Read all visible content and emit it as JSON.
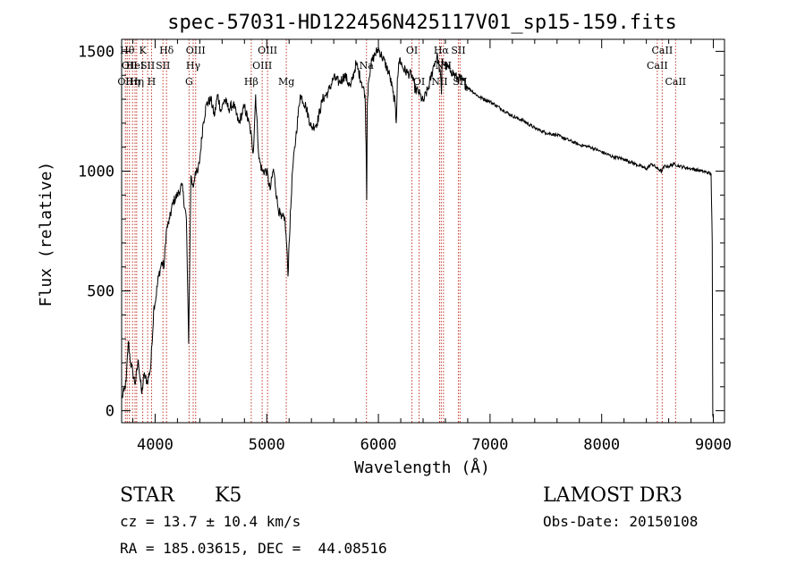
{
  "chart_data": {
    "type": "line",
    "title": "spec-57031-HD122456N425117V01_sp15-159.fits",
    "xlabel": "Wavelength (Å)",
    "ylabel": "Flux (relative)",
    "xlim": [
      3700,
      9100
    ],
    "ylim": [
      -50,
      1550
    ],
    "xticks": [
      4000,
      5000,
      6000,
      7000,
      8000,
      9000
    ],
    "yticks": [
      0,
      500,
      1000,
      1500
    ],
    "series": [
      {
        "name": "flux",
        "x": [
          3700,
          3720,
          3740,
          3760,
          3780,
          3800,
          3820,
          3850,
          3880,
          3900,
          3930,
          3960,
          3990,
          4000,
          4030,
          4060,
          4080,
          4100,
          4130,
          4160,
          4200,
          4240,
          4280,
          4300,
          4320,
          4340,
          4360,
          4380,
          4400,
          4430,
          4460,
          4500,
          4530,
          4560,
          4590,
          4620,
          4660,
          4700,
          4750,
          4800,
          4850,
          4880,
          4900,
          4930,
          4960,
          5000,
          5030,
          5060,
          5100,
          5130,
          5160,
          5180,
          5190,
          5200,
          5230,
          5260,
          5300,
          5350,
          5400,
          5450,
          5500,
          5550,
          5600,
          5650,
          5700,
          5750,
          5800,
          5850,
          5880,
          5890,
          5895,
          5900,
          5910,
          5930,
          5960,
          6000,
          6030,
          6060,
          6100,
          6130,
          6150,
          6160,
          6170,
          6190,
          6220,
          6260,
          6300,
          6330,
          6360,
          6400,
          6450,
          6500,
          6530,
          6560,
          6565,
          6570,
          6600,
          6650,
          6700,
          6750,
          6800,
          6900,
          7000,
          7100,
          7200,
          7300,
          7400,
          7500,
          7600,
          7700,
          7800,
          7900,
          8000,
          8100,
          8200,
          8300,
          8400,
          8450,
          8500,
          8540,
          8560,
          8600,
          8650,
          8700,
          8800,
          8900,
          8980,
          8990,
          8995,
          9000
        ],
        "y": [
          50,
          80,
          120,
          290,
          200,
          160,
          110,
          210,
          70,
          150,
          120,
          180,
          440,
          450,
          560,
          620,
          600,
          750,
          800,
          870,
          900,
          940,
          800,
          280,
          980,
          930,
          1000,
          990,
          1050,
          1200,
          1280,
          1300,
          1230,
          1320,
          1250,
          1300,
          1260,
          1280,
          1200,
          1270,
          1180,
          1080,
          1320,
          1050,
          1000,
          1000,
          920,
          1010,
          850,
          800,
          810,
          680,
          560,
          700,
          1000,
          1140,
          1320,
          1270,
          1180,
          1200,
          1300,
          1330,
          1390,
          1370,
          1400,
          1350,
          1450,
          1370,
          1320,
          1110,
          880,
          1270,
          1370,
          1440,
          1480,
          1510,
          1480,
          1450,
          1400,
          1330,
          1280,
          1200,
          1390,
          1470,
          1430,
          1410,
          1400,
          1340,
          1330,
          1290,
          1350,
          1450,
          1480,
          1380,
          1320,
          1460,
          1440,
          1420,
          1390,
          1380,
          1350,
          1310,
          1290,
          1260,
          1230,
          1210,
          1180,
          1160,
          1150,
          1130,
          1110,
          1100,
          1080,
          1060,
          1050,
          1030,
          1010,
          1030,
          1010,
          1000,
          1020,
          1020,
          1030,
          1020,
          1010,
          1000,
          990,
          700,
          -20,
          -30
        ]
      }
    ],
    "lines": [
      {
        "x": 3734,
        "label": "OII",
        "row": 3
      },
      {
        "x": 3750,
        "label": "Hθ",
        "row": 1
      },
      {
        "x": 3770,
        "label": "OII",
        "row": 2
      },
      {
        "x": 3798,
        "label": "Hη",
        "row": 3
      },
      {
        "x": 3820,
        "label": "HeI",
        "row": 2
      },
      {
        "x": 3835,
        "label": "Hη",
        "row": 3
      },
      {
        "x": 3889,
        "label": "K",
        "row": 1
      },
      {
        "x": 3933,
        "label": "SII",
        "row": 2
      },
      {
        "x": 3968,
        "label": "H",
        "row": 3
      },
      {
        "x": 4070,
        "label": "SII",
        "row": 2
      },
      {
        "x": 4102,
        "label": "Hδ",
        "row": 1
      },
      {
        "x": 4304,
        "label": "G",
        "row": 3
      },
      {
        "x": 4341,
        "label": "Hγ",
        "row": 2
      },
      {
        "x": 4363,
        "label": "OIII",
        "row": 1
      },
      {
        "x": 4861,
        "label": "Hβ",
        "row": 3
      },
      {
        "x": 4959,
        "label": "OIII",
        "row": 2
      },
      {
        "x": 5007,
        "label": "OIII",
        "row": 1
      },
      {
        "x": 5175,
        "label": "Mg",
        "row": 3
      },
      {
        "x": 5893,
        "label": "Na",
        "row": 2
      },
      {
        "x": 6300,
        "label": "OI",
        "row": 1
      },
      {
        "x": 6364,
        "label": "OI",
        "row": 3
      },
      {
        "x": 6548,
        "label": "NII",
        "row": 3
      },
      {
        "x": 6563,
        "label": "Hα",
        "row": 1
      },
      {
        "x": 6583,
        "label": "NII",
        "row": 2
      },
      {
        "x": 6716,
        "label": "SII",
        "row": 1
      },
      {
        "x": 6731,
        "label": "SII",
        "row": 3
      },
      {
        "x": 8498,
        "label": "CaII",
        "row": 2
      },
      {
        "x": 8542,
        "label": "CaII",
        "row": 1
      },
      {
        "x": 8662,
        "label": "CaII",
        "row": 3
      }
    ]
  },
  "info": {
    "object_type": "STAR",
    "subclass": "K5",
    "redshift": "cz = 13.7 ± 10.4 km/s",
    "coords": "RA = 185.03615, DEC =  44.08516",
    "survey": "LAMOST DR3",
    "obs_date": "Obs-Date: 20150108"
  }
}
